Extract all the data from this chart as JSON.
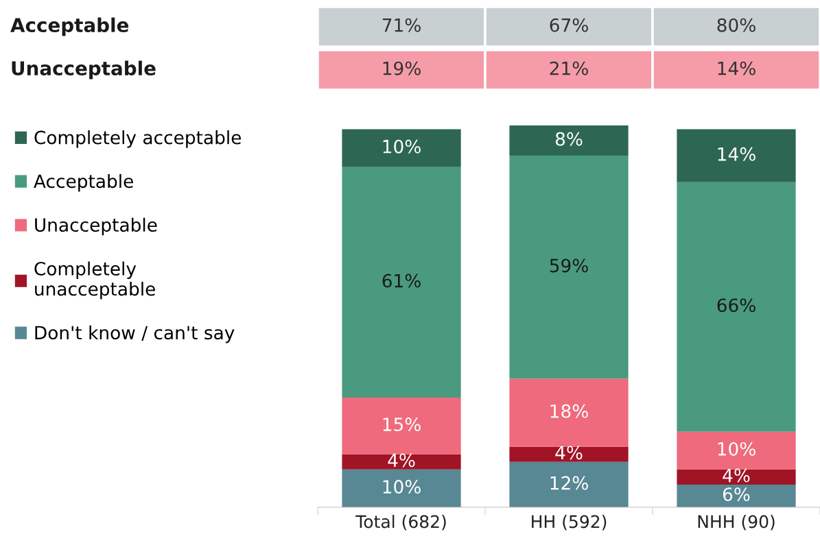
{
  "chart_data": {
    "type": "bar",
    "stacked": true,
    "categories": [
      "Total (682)",
      "HH (592)",
      "NHH (90)"
    ],
    "series": [
      {
        "name": "Don't know / can't say",
        "color": "#578894",
        "values": [
          10,
          12,
          6
        ],
        "value_labels": [
          "10%",
          "12%",
          "6%"
        ]
      },
      {
        "name": "Completely\nunacceptable",
        "color": "#a01426",
        "values": [
          4,
          4,
          4
        ],
        "value_labels": [
          "4%",
          "4%",
          "4%"
        ]
      },
      {
        "name": "Unacceptable",
        "color": "#ee6a7c",
        "values": [
          15,
          18,
          10
        ],
        "value_labels": [
          "15%",
          "18%",
          "10%"
        ]
      },
      {
        "name": "Acceptable",
        "color": "#4a9a80",
        "values": [
          61,
          59,
          66
        ],
        "value_labels": [
          "61%",
          "59%",
          "66%"
        ]
      },
      {
        "name": "Completely acceptable",
        "color": "#2e6654",
        "values": [
          10,
          8,
          14
        ],
        "value_labels": [
          "10%",
          "8%",
          "14%"
        ]
      }
    ],
    "legend": "left",
    "grid": false,
    "annotations": [
      "Acceptable",
      "71%",
      "67%",
      "80%",
      "Unacceptable",
      "19%",
      "21%",
      "14%"
    ]
  }
}
